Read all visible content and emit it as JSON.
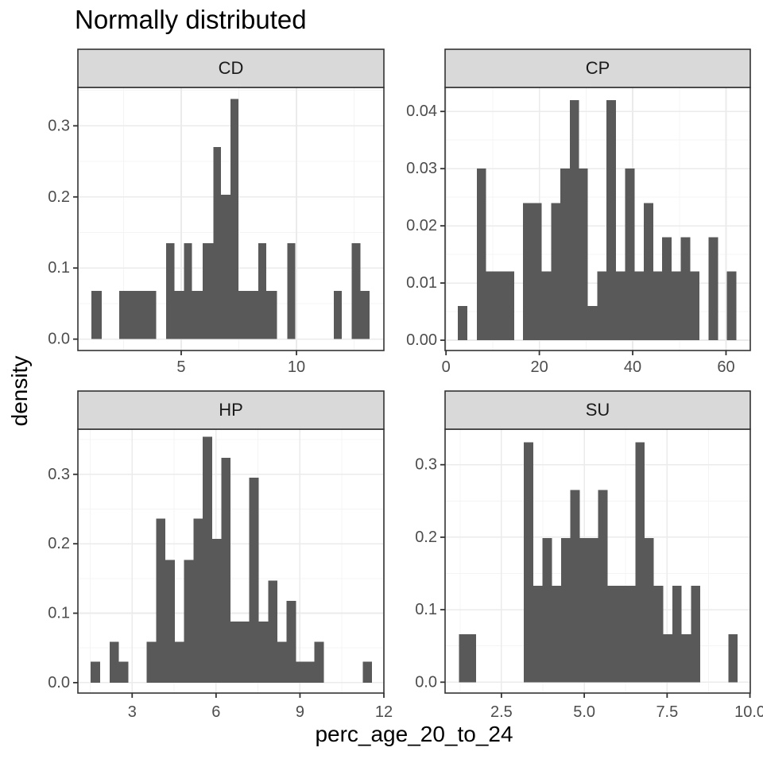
{
  "title": "Normally distributed",
  "axes": {
    "x_title": "perc_age_20_to_24",
    "y_title": "density"
  },
  "colors": {
    "background": "#ffffff",
    "bar_fill": "#595959",
    "strip_bg": "#d9d9d9",
    "border": "#333333",
    "grid_major": "#ebebeb",
    "grid_minor": "#f4f4f4",
    "tick_mark": "#333333",
    "tick_label": "#4d4d4d",
    "title_color": "#000000"
  },
  "chart_data": [
    {
      "type": "bar",
      "subtype": "histogram",
      "facet": "CD",
      "xlabel": "perc_age_20_to_24",
      "ylabel": "density",
      "grid": true,
      "xlim": [
        0.52,
        13.79
      ],
      "ylim": [
        -0.016,
        0.354
      ],
      "xticks": [
        {
          "v": 5,
          "label": "5"
        },
        {
          "v": 10,
          "label": "10"
        }
      ],
      "yticks": [
        {
          "v": 0,
          "label": "0.0"
        },
        {
          "v": 0.1,
          "label": "0.1"
        },
        {
          "v": 0.2,
          "label": "0.2"
        },
        {
          "v": 0.3,
          "label": "0.3"
        }
      ],
      "bars": [
        [
          1.1,
          1.56,
          0.068
        ],
        [
          2.31,
          3.92,
          0.068
        ],
        [
          4.34,
          4.7,
          0.135
        ],
        [
          4.7,
          5.13,
          0.068
        ],
        [
          5.13,
          5.47,
          0.135
        ],
        [
          5.47,
          5.93,
          0.068
        ],
        [
          5.93,
          6.39,
          0.135
        ],
        [
          6.39,
          6.73,
          0.27
        ],
        [
          6.73,
          7.14,
          0.203
        ],
        [
          7.14,
          7.48,
          0.338
        ],
        [
          7.48,
          8.34,
          0.068
        ],
        [
          8.34,
          8.69,
          0.135
        ],
        [
          8.69,
          9.15,
          0.068
        ],
        [
          9.61,
          9.95,
          0.135
        ],
        [
          11.62,
          11.97,
          0.068
        ],
        [
          12.4,
          12.77,
          0.135
        ],
        [
          12.77,
          13.17,
          0.068
        ]
      ]
    },
    {
      "type": "bar",
      "subtype": "histogram",
      "facet": "CP",
      "xlabel": "perc_age_20_to_24",
      "ylabel": "density",
      "grid": true,
      "xlim": [
        -0.2,
        65.2
      ],
      "ylim": [
        -0.0018,
        0.0442
      ],
      "xticks": [
        {
          "v": 0,
          "label": "0"
        },
        {
          "v": 20,
          "label": "20"
        },
        {
          "v": 40,
          "label": "40"
        },
        {
          "v": 60,
          "label": "60"
        }
      ],
      "yticks": [
        {
          "v": 0,
          "label": "0.00"
        },
        {
          "v": 0.01,
          "label": "0.01"
        },
        {
          "v": 0.02,
          "label": "0.02"
        },
        {
          "v": 0.03,
          "label": "0.03"
        },
        {
          "v": 0.04,
          "label": "0.04"
        }
      ],
      "bars": [
        [
          2.5,
          4.6,
          0.006
        ],
        [
          6.6,
          8.6,
          0.03
        ],
        [
          8.6,
          14.6,
          0.012
        ],
        [
          16.5,
          20.5,
          0.024
        ],
        [
          20.5,
          22.5,
          0.012
        ],
        [
          22.5,
          24.5,
          0.024
        ],
        [
          24.5,
          26.5,
          0.03
        ],
        [
          26.5,
          28.5,
          0.042
        ],
        [
          28.5,
          30.4,
          0.03
        ],
        [
          30.4,
          32.4,
          0.006
        ],
        [
          32.4,
          34.4,
          0.012
        ],
        [
          34.4,
          36.4,
          0.042
        ],
        [
          36.4,
          38.4,
          0.012
        ],
        [
          38.4,
          40.4,
          0.03
        ],
        [
          40.4,
          42.4,
          0.012
        ],
        [
          42.4,
          44.4,
          0.024
        ],
        [
          44.4,
          46.3,
          0.012
        ],
        [
          46.3,
          48.3,
          0.018
        ],
        [
          48.3,
          50.3,
          0.012
        ],
        [
          50.3,
          52.3,
          0.018
        ],
        [
          52.3,
          54.3,
          0.012
        ],
        [
          56.3,
          58.3,
          0.018
        ],
        [
          60.2,
          62.2,
          0.012
        ]
      ]
    },
    {
      "type": "bar",
      "subtype": "histogram",
      "facet": "HP",
      "xlabel": "perc_age_20_to_24",
      "ylabel": "density",
      "grid": true,
      "xlim": [
        1.06,
        12.0
      ],
      "ylim": [
        -0.015,
        0.365
      ],
      "xticks": [
        {
          "v": 3,
          "label": "3"
        },
        {
          "v": 6,
          "label": "6"
        },
        {
          "v": 9,
          "label": "9"
        },
        {
          "v": 12,
          "label": "12"
        }
      ],
      "yticks": [
        {
          "v": 0,
          "label": "0.0"
        },
        {
          "v": 0.1,
          "label": "0.1"
        },
        {
          "v": 0.2,
          "label": "0.2"
        },
        {
          "v": 0.3,
          "label": "0.3"
        }
      ],
      "bars": [
        [
          1.52,
          1.86,
          0.03
        ],
        [
          2.19,
          2.52,
          0.059
        ],
        [
          2.52,
          2.86,
          0.03
        ],
        [
          3.52,
          3.86,
          0.059
        ],
        [
          3.86,
          4.19,
          0.236
        ],
        [
          4.19,
          4.52,
          0.177
        ],
        [
          4.52,
          4.86,
          0.059
        ],
        [
          4.86,
          5.19,
          0.177
        ],
        [
          5.19,
          5.52,
          0.236
        ],
        [
          5.52,
          5.86,
          0.354
        ],
        [
          5.86,
          6.19,
          0.207
        ],
        [
          6.19,
          6.52,
          0.324
        ],
        [
          6.52,
          7.19,
          0.088
        ],
        [
          7.19,
          7.52,
          0.295
        ],
        [
          7.52,
          7.86,
          0.088
        ],
        [
          7.86,
          8.19,
          0.147
        ],
        [
          8.19,
          8.52,
          0.059
        ],
        [
          8.52,
          8.86,
          0.118
        ],
        [
          8.86,
          9.52,
          0.03
        ],
        [
          9.52,
          9.86,
          0.059
        ],
        [
          11.24,
          11.57,
          0.03
        ]
      ]
    },
    {
      "type": "bar",
      "subtype": "histogram",
      "facet": "SU",
      "xlabel": "perc_age_20_to_24",
      "ylabel": "density",
      "grid": true,
      "xlim": [
        0.8,
        10.01
      ],
      "ylim": [
        -0.015,
        0.349
      ],
      "xticks": [
        {
          "v": 2.5,
          "label": "2.5"
        },
        {
          "v": 5,
          "label": "5.0"
        },
        {
          "v": 7.5,
          "label": "7.5"
        },
        {
          "v": 10,
          "label": "10.0"
        }
      ],
      "yticks": [
        {
          "v": 0,
          "label": "0.0"
        },
        {
          "v": 0.1,
          "label": "0.1"
        },
        {
          "v": 0.2,
          "label": "0.2"
        },
        {
          "v": 0.3,
          "label": "0.3"
        }
      ],
      "bars": [
        [
          1.22,
          1.74,
          0.066
        ],
        [
          3.18,
          3.46,
          0.331
        ],
        [
          3.46,
          3.74,
          0.133
        ],
        [
          3.74,
          4.02,
          0.199
        ],
        [
          4.02,
          4.3,
          0.133
        ],
        [
          4.3,
          4.58,
          0.199
        ],
        [
          4.58,
          4.86,
          0.265
        ],
        [
          4.86,
          5.42,
          0.199
        ],
        [
          5.42,
          5.7,
          0.265
        ],
        [
          5.7,
          6.54,
          0.133
        ],
        [
          6.54,
          6.82,
          0.331
        ],
        [
          6.82,
          7.1,
          0.199
        ],
        [
          7.1,
          7.38,
          0.133
        ],
        [
          7.38,
          7.66,
          0.066
        ],
        [
          7.66,
          7.94,
          0.133
        ],
        [
          7.94,
          8.22,
          0.066
        ],
        [
          8.22,
          8.5,
          0.133
        ],
        [
          9.35,
          9.63,
          0.066
        ]
      ]
    }
  ]
}
